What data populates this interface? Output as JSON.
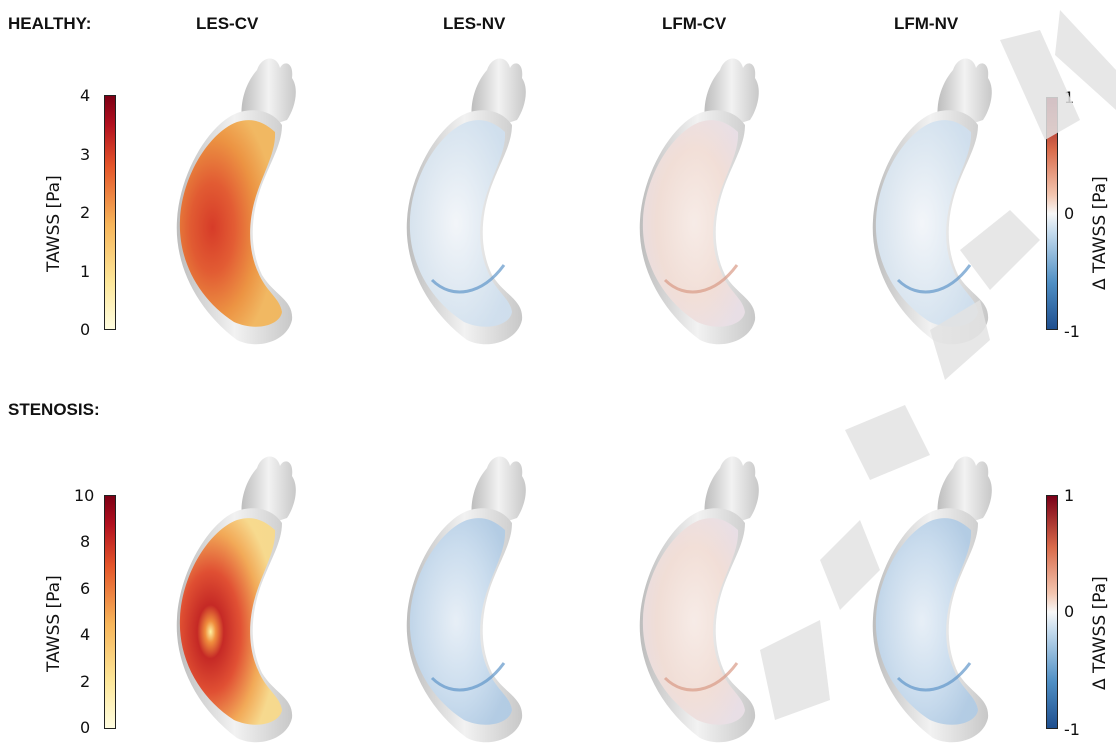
{
  "header": {
    "healthy_label": "HEALTHY:",
    "col1": "LES-CV",
    "col2": "LES-NV",
    "col3": "LFM-CV",
    "col4": "LFM-NV"
  },
  "stenosis_label": "STENOSIS:",
  "healthy_scale": {
    "label": "TAWSS [Pa]",
    "ticks": [
      "4",
      "3",
      "2",
      "1",
      "0"
    ]
  },
  "stenosis_scale": {
    "label": "TAWSS [Pa]",
    "ticks": [
      "10",
      "8",
      "6",
      "4",
      "2",
      "0"
    ]
  },
  "delta_scale": {
    "label": "Δ TAWSS [Pa]",
    "top": "1",
    "mid": "0",
    "bottom": "-1"
  },
  "colors": {
    "tawss_low": "#fffde0",
    "tawss_mid": "#f08a2a",
    "tawss_high": "#8b0015",
    "diff_neg": "#1f5a9e",
    "diff_zero": "#f7f7f7",
    "diff_pos": "#7a0018"
  }
}
